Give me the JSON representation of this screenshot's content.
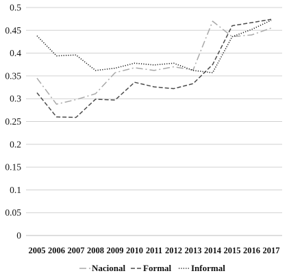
{
  "chart_data": {
    "type": "line",
    "title": "",
    "xlabel": "",
    "ylabel": "",
    "categories": [
      "2005",
      "2006",
      "2007",
      "2008",
      "2009",
      "2010",
      "2011",
      "2012",
      "2013",
      "2014",
      "2015",
      "2016",
      "2017"
    ],
    "ylim": [
      0,
      0.5
    ],
    "y_ticks": [
      "0",
      "0.05",
      "0.1",
      "0.15",
      "0.2",
      "0.25",
      "0.3",
      "0.35",
      "0.4",
      "0.45",
      "0.5"
    ],
    "grid": true,
    "legend_position": "bottom",
    "series": [
      {
        "name": "Nacional",
        "style": "dash-dot",
        "color": "#a8a8a8",
        "values": [
          0.345,
          0.288,
          0.298,
          0.311,
          0.357,
          0.368,
          0.362,
          0.37,
          0.363,
          0.47,
          0.436,
          0.44,
          0.455
        ]
      },
      {
        "name": "Formal",
        "style": "dashed",
        "color": "#4a4a4a",
        "values": [
          0.313,
          0.26,
          0.259,
          0.299,
          0.297,
          0.336,
          0.326,
          0.322,
          0.333,
          0.375,
          0.46,
          0.467,
          0.474
        ]
      },
      {
        "name": "Informal",
        "style": "dotted",
        "color": "#1a1a1a",
        "values": [
          0.438,
          0.394,
          0.396,
          0.362,
          0.367,
          0.378,
          0.374,
          0.378,
          0.362,
          0.357,
          0.436,
          0.452,
          0.472
        ]
      }
    ]
  }
}
